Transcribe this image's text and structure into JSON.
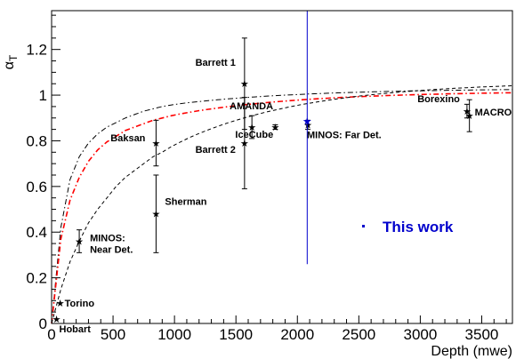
{
  "chart_data": {
    "type": "scatter",
    "xlabel": "Depth (mwe)",
    "ylabel_main": "α",
    "ylabel_sub": "T",
    "xlim": [
      0,
      3750
    ],
    "ylim": [
      0,
      1.37
    ],
    "x_ticks": [
      0,
      500,
      1000,
      1500,
      2000,
      2500,
      3000,
      3500
    ],
    "x_tick_labels": [
      "0",
      "500",
      "1000",
      "1500",
      "2000",
      "2500",
      "3000",
      "3500"
    ],
    "y_ticks": [
      0,
      0.2,
      0.4,
      0.6,
      0.8,
      1.0,
      1.2
    ],
    "y_tick_labels": [
      "0",
      "0.2",
      "0.4",
      "0.6",
      "0.8",
      "1",
      "1.2"
    ],
    "grid": false,
    "legend": {
      "label": "This work",
      "position": "center-right",
      "color": "#0000cc"
    },
    "points": [
      {
        "name": "Hobart",
        "x": 40,
        "y": 0.02,
        "err": 0.0
      },
      {
        "name": "Torino",
        "x": 70,
        "y": 0.09,
        "err": 0.0
      },
      {
        "name": "MINOS: Near Det.",
        "x": 225,
        "y": 0.36,
        "err": 0.05
      },
      {
        "name": "Baksan",
        "x": 850,
        "y": 0.79,
        "err": 0.1
      },
      {
        "name": "Sherman",
        "x": 850,
        "y": 0.48,
        "err": 0.17
      },
      {
        "name": "Barrett 1",
        "x": 1570,
        "y": 1.05,
        "err": 0.2
      },
      {
        "name": "Barrett 2",
        "x": 1570,
        "y": 0.79,
        "err": 0.2
      },
      {
        "name": "AMANDA",
        "x": 1630,
        "y": 0.86,
        "err": 0.05
      },
      {
        "name": "IceCube",
        "x": 1820,
        "y": 0.86,
        "err": 0.01
      },
      {
        "name": "MINOS: Far Det.",
        "x": 2085,
        "y": 0.87,
        "err": 0.02
      },
      {
        "name": "Borexino",
        "x": 3380,
        "y": 0.93,
        "err": 0.03
      },
      {
        "name": "MACRO",
        "x": 3400,
        "y": 0.91,
        "err": 0.07
      }
    ],
    "this_work": {
      "x": 2080,
      "y": 0.885,
      "err_low": 0.625,
      "err_high": 0.49,
      "color": "#0000cc"
    },
    "curves": [
      {
        "style": "dash-dot",
        "color": "#000000",
        "y": [
          0.0,
          0.42,
          0.63,
          0.73,
          0.79,
          0.83,
          0.86,
          0.88,
          0.9,
          0.915,
          0.93,
          0.94,
          0.95,
          0.957,
          0.963,
          0.968,
          0.972,
          0.976
        ]
      },
      {
        "style": "dash-dot",
        "color": "#ff0000",
        "y": [
          0.0,
          0.37,
          0.54,
          0.64,
          0.71,
          0.76,
          0.795,
          0.82,
          0.845,
          0.86,
          0.875,
          0.89,
          0.9,
          0.91,
          0.918,
          0.925,
          0.932,
          0.938
        ]
      },
      {
        "style": "dashed",
        "color": "#000000",
        "y": [
          0.0,
          0.15,
          0.27,
          0.36,
          0.44,
          0.5,
          0.55,
          0.6,
          0.64,
          0.67,
          0.7,
          0.73,
          0.75,
          0.775,
          0.795,
          0.815,
          0.832,
          0.848
        ]
      }
    ],
    "curve_x": [
      0,
      75,
      150,
      225,
      300,
      375,
      450,
      525,
      600,
      675,
      750,
      825,
      900,
      975,
      1050,
      1125,
      1200,
      1275
    ]
  }
}
